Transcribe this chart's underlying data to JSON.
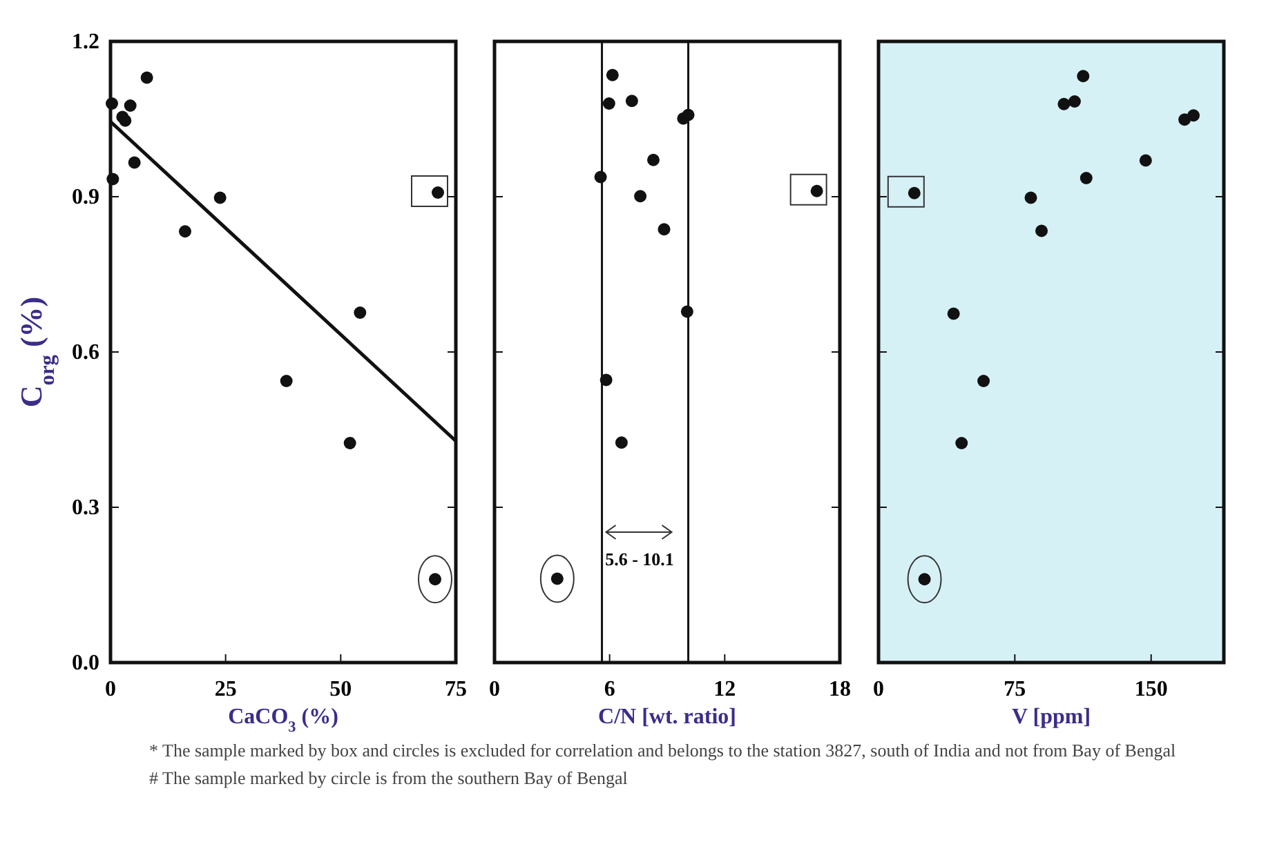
{
  "chart_data": [
    {
      "type": "scatter",
      "xlabel": "CaCO$_{3}$ (%)",
      "ylabel": "C$_{org}$ (%)",
      "xlim": [
        0,
        75
      ],
      "ylim": [
        0,
        1.2
      ],
      "xticks": [
        0,
        25,
        50,
        75
      ],
      "yticks": [
        {
          "value": 0,
          "label": "0.0"
        },
        0.3,
        0.6,
        0.9,
        1.2
      ],
      "grid": false,
      "marker": "circle",
      "series": [
        {
          "color": "#111111",
          "x": [
            0.3,
            7.9,
            4.3,
            2.6,
            3.2,
            5.2,
            0.5,
            23.8,
            16.2,
            54.2,
            38.2,
            52.0
          ],
          "values": [
            1.08,
            1.13,
            1.076,
            1.054,
            1.047,
            0.966,
            0.934,
            0.898,
            0.833,
            0.676,
            0.544,
            0.424
          ]
        },
        {
          "color": "#111111",
          "x": [
            71.1
          ],
          "values": [
            0.908
          ]
        },
        {
          "color": "#111111",
          "x": [
            70.5
          ],
          "values": [
            0.161
          ]
        },
        {
          "type": "line",
          "marker": "none",
          "color": "#111111",
          "x": [
            0,
            75
          ],
          "values": [
            1.045,
            0.428
          ]
        }
      ],
      "annotations": [
        "* The sample marked by box and circles is excluded for correlation and belongs to the station 3827, south of India and not from Bay of Bengal",
        "# The sample marked by circle is from the southern Bay of Bengal"
      ]
    },
    {
      "type": "scatter",
      "xlabel": "C/N [wt. ratio]",
      "xlim": [
        0,
        18
      ],
      "ylim": [
        0,
        1.2
      ],
      "xticks": [
        0,
        6,
        12,
        18
      ],
      "yticks": [
        {
          "value": 0,
          "label": null
        },
        {
          "value": 0.3,
          "label": null
        },
        {
          "value": 0.6,
          "label": null
        },
        {
          "value": 0.9,
          "label": null
        },
        {
          "value": 1.2,
          "label": null
        }
      ],
      "tick_labels": "x",
      "grid": false,
      "marker": "circle",
      "series": [
        {
          "color": "#111111",
          "x": [
            6.15,
            5.97,
            7.16,
            9.84,
            10.1,
            8.28,
            5.53,
            7.6,
            8.84,
            10.04,
            5.82,
            6.62
          ],
          "values": [
            1.135,
            1.08,
            1.085,
            1.051,
            1.058,
            0.971,
            0.938,
            0.901,
            0.837,
            0.678,
            0.546,
            0.425
          ]
        },
        {
          "color": "#111111",
          "x": [
            16.8
          ],
          "values": [
            0.911
          ]
        },
        {
          "color": "#111111",
          "x": [
            3.27
          ],
          "values": [
            0.162
          ]
        }
      ],
      "ref_lines": [
        {
          "axis": "x",
          "value": 5.6,
          "color": "#111111",
          "line_style": "solid"
        },
        {
          "axis": "x",
          "value": 10.1,
          "color": "#111111",
          "line_style": "solid"
        }
      ],
      "annotations": [
        "5.6 - 10.1"
      ]
    },
    {
      "type": "scatter",
      "xlabel": "V [ppm]",
      "xlim": [
        0,
        190
      ],
      "ylim": [
        0,
        1.2
      ],
      "xticks": [
        0,
        75,
        150
      ],
      "yticks": [
        {
          "value": 0,
          "label": null
        },
        {
          "value": 0.3,
          "label": null
        },
        {
          "value": 0.6,
          "label": null
        },
        {
          "value": 0.9,
          "label": null
        },
        {
          "value": 1.2,
          "label": null
        }
      ],
      "tick_labels": "x",
      "grid": false,
      "marker": "circle",
      "series": [
        {
          "color": "#111111",
          "x": [
            112.6,
            102.0,
            107.9,
            168.4,
            173.3,
            147.0,
            114.3,
            83.8,
            89.7,
            41.3,
            57.8,
            45.7
          ],
          "values": [
            1.133,
            1.079,
            1.084,
            1.049,
            1.057,
            0.97,
            0.936,
            0.898,
            0.834,
            0.674,
            0.544,
            0.424
          ]
        },
        {
          "color": "#111111",
          "x": [
            19.7
          ],
          "values": [
            0.907
          ]
        },
        {
          "color": "#111111",
          "x": [
            25.3
          ],
          "values": [
            0.161
          ]
        }
      ]
    }
  ]
}
